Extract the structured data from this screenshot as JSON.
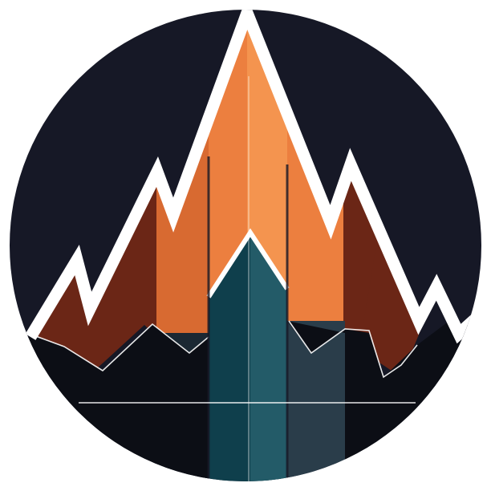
{
  "image": {
    "kind": "logo",
    "subject": "mountain-chart-emblem",
    "colors": {
      "page_background": "#ffffff",
      "badge_background": "#161826",
      "foreground_shadow": "#0c0e15",
      "outline": "#ffffff",
      "orange_light": "#f4944f",
      "orange_mid": "#ec7f3f",
      "orange_dark": "#d86a31",
      "rust": "#6b2616",
      "teal": "#0f3f4c",
      "teal_light": "#235b68",
      "slate": "#2a3d4a",
      "slate_dark": "#1b2833"
    }
  }
}
